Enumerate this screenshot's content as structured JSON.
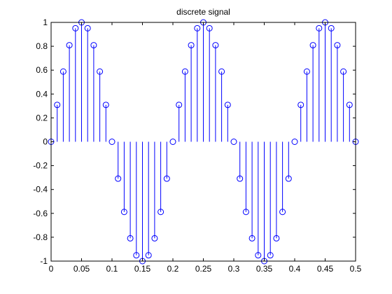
{
  "chart_data": {
    "type": "stem",
    "title": "discrete signal",
    "xlabel": "",
    "ylabel": "",
    "xlim": [
      0,
      0.5
    ],
    "ylim": [
      -1,
      1
    ],
    "grid": false,
    "legend": "none",
    "x_ticks": [
      "0",
      "0.05",
      "0.1",
      "0.15",
      "0.2",
      "0.25",
      "0.3",
      "0.35",
      "0.4",
      "0.45",
      "0.5"
    ],
    "y_ticks": [
      "-1",
      "-0.8",
      "-0.6",
      "-0.4",
      "-0.2",
      "0",
      "0.2",
      "0.4",
      "0.6",
      "0.8",
      "1"
    ],
    "stem_color": "#0000ff",
    "series": [
      {
        "x": [
          0,
          0.01,
          0.02,
          0.03,
          0.04,
          0.05,
          0.06,
          0.07,
          0.08,
          0.09,
          0.1,
          0.11,
          0.12,
          0.13,
          0.14,
          0.15,
          0.16,
          0.17,
          0.18,
          0.19,
          0.2,
          0.21,
          0.22,
          0.23,
          0.24,
          0.25,
          0.26,
          0.27,
          0.28,
          0.29,
          0.3,
          0.31,
          0.32,
          0.33,
          0.34,
          0.35,
          0.36,
          0.37,
          0.38,
          0.39,
          0.4,
          0.41,
          0.42,
          0.43,
          0.44,
          0.45,
          0.46,
          0.47,
          0.48,
          0.49,
          0.5
        ],
        "values": [
          0,
          0.309,
          0.588,
          0.809,
          0.951,
          1,
          0.951,
          0.809,
          0.588,
          0.309,
          0,
          -0.309,
          -0.588,
          -0.809,
          -0.951,
          -1,
          -0.951,
          -0.809,
          -0.588,
          -0.309,
          0,
          0.309,
          0.588,
          0.809,
          0.951,
          1,
          0.951,
          0.809,
          0.588,
          0.309,
          0,
          -0.309,
          -0.588,
          -0.809,
          -0.951,
          -1,
          -0.951,
          -0.809,
          -0.588,
          -0.309,
          0,
          0.309,
          0.588,
          0.809,
          0.951,
          1,
          0.951,
          0.809,
          0.588,
          0.309,
          0
        ]
      }
    ]
  }
}
